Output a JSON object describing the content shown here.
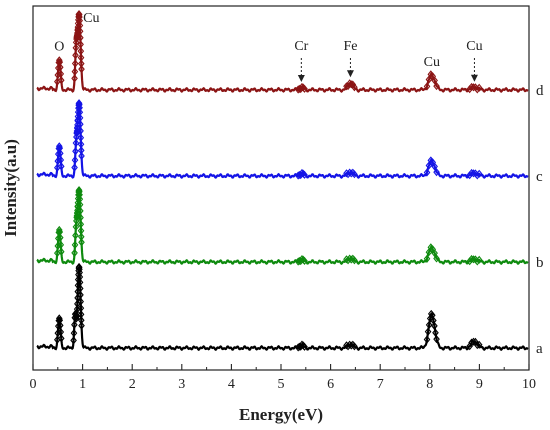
{
  "chart_data": {
    "type": "line",
    "title": "",
    "xlabel": "Energy(eV)",
    "ylabel": "Intensity(a.u)",
    "xlim": [
      0,
      10
    ],
    "xticks": [
      "0",
      "1",
      "2",
      "3",
      "4",
      "5",
      "6",
      "7",
      "8",
      "9",
      "10"
    ],
    "grid": false,
    "series": [
      {
        "name": "a",
        "color": "#000000",
        "marker": "diamond",
        "baseline": 0.0,
        "peaks": [
          {
            "x": 0.53,
            "h": 0.62,
            "w": 0.025
          },
          {
            "x": 0.85,
            "h": 0.65,
            "w": 0.02
          },
          {
            "x": 0.93,
            "h": 1.7,
            "w": 0.03
          },
          {
            "x": 5.41,
            "h": 0.06,
            "w": 0.04
          },
          {
            "x": 6.4,
            "h": 0.08,
            "w": 0.05
          },
          {
            "x": 8.04,
            "h": 0.7,
            "w": 0.06
          },
          {
            "x": 8.9,
            "h": 0.14,
            "w": 0.06
          }
        ]
      },
      {
        "name": "b",
        "color": "#0e8a0e",
        "marker": "diamond",
        "baseline": 1.8,
        "peaks": [
          {
            "x": 0.53,
            "h": 0.67,
            "w": 0.025
          },
          {
            "x": 0.87,
            "h": 0.6,
            "w": 0.02
          },
          {
            "x": 0.93,
            "h": 1.5,
            "w": 0.03
          },
          {
            "x": 5.41,
            "h": 0.05,
            "w": 0.04
          },
          {
            "x": 6.4,
            "h": 0.08,
            "w": 0.05
          },
          {
            "x": 8.04,
            "h": 0.3,
            "w": 0.06
          },
          {
            "x": 8.9,
            "h": 0.06,
            "w": 0.06
          }
        ]
      },
      {
        "name": "c",
        "color": "#1414e6",
        "marker": "diamond",
        "baseline": 3.6,
        "peaks": [
          {
            "x": 0.53,
            "h": 0.62,
            "w": 0.025
          },
          {
            "x": 0.87,
            "h": 0.55,
            "w": 0.02
          },
          {
            "x": 0.93,
            "h": 1.52,
            "w": 0.03
          },
          {
            "x": 5.41,
            "h": 0.05,
            "w": 0.04
          },
          {
            "x": 6.4,
            "h": 0.08,
            "w": 0.05
          },
          {
            "x": 8.04,
            "h": 0.32,
            "w": 0.06
          },
          {
            "x": 8.9,
            "h": 0.06,
            "w": 0.06
          }
        ]
      },
      {
        "name": "d",
        "color": "#8b1414",
        "marker": "diamond",
        "baseline": 5.4,
        "peaks": [
          {
            "x": 0.53,
            "h": 0.62,
            "w": 0.025
          },
          {
            "x": 0.87,
            "h": 0.78,
            "w": 0.02
          },
          {
            "x": 0.93,
            "h": 1.58,
            "w": 0.03
          },
          {
            "x": 5.41,
            "h": 0.05,
            "w": 0.04
          },
          {
            "x": 6.4,
            "h": 0.15,
            "w": 0.05
          },
          {
            "x": 8.04,
            "h": 0.32,
            "w": 0.06
          },
          {
            "x": 8.9,
            "h": 0.06,
            "w": 0.06
          }
        ]
      }
    ],
    "annotations": [
      {
        "text": "O",
        "x": 0.53,
        "arrow": false
      },
      {
        "text": "Cu",
        "x": 0.93,
        "arrow": false
      },
      {
        "text": "Cr",
        "x": 5.41,
        "arrow": true
      },
      {
        "text": "Fe",
        "x": 6.4,
        "arrow": true
      },
      {
        "text": "Cu",
        "x": 8.04,
        "arrow": false
      },
      {
        "text": "Cu",
        "x": 8.9,
        "arrow": true
      }
    ]
  }
}
